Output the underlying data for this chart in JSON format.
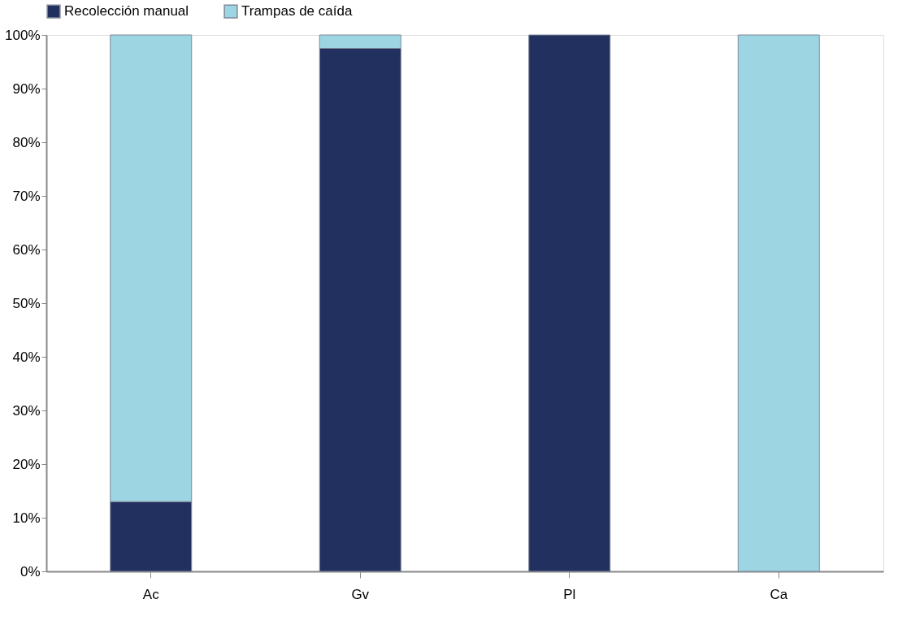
{
  "chart_data": {
    "type": "bar",
    "stacked": true,
    "categories": [
      "Ac",
      "Gv",
      "Pl",
      "Ca"
    ],
    "series": [
      {
        "name": "Recolección manual",
        "color": "#22305f",
        "values": [
          13,
          97.5,
          100,
          0
        ]
      },
      {
        "name": "Trampas de caída",
        "color": "#9dd5e3",
        "values": [
          87,
          2.5,
          0,
          100
        ]
      }
    ],
    "ylim": [
      0,
      100
    ],
    "yticks": [
      {
        "value": 0,
        "label": "0%"
      },
      {
        "value": 10,
        "label": "10%"
      },
      {
        "value": 20,
        "label": "20%"
      },
      {
        "value": 30,
        "label": "30%"
      },
      {
        "value": 40,
        "label": "40%"
      },
      {
        "value": 50,
        "label": "50%"
      },
      {
        "value": 60,
        "label": "60%"
      },
      {
        "value": 70,
        "label": "70%"
      },
      {
        "value": 80,
        "label": "80%"
      },
      {
        "value": 90,
        "label": "90%"
      },
      {
        "value": 100,
        "label": "100%"
      }
    ],
    "grid": false,
    "legend": "top"
  }
}
